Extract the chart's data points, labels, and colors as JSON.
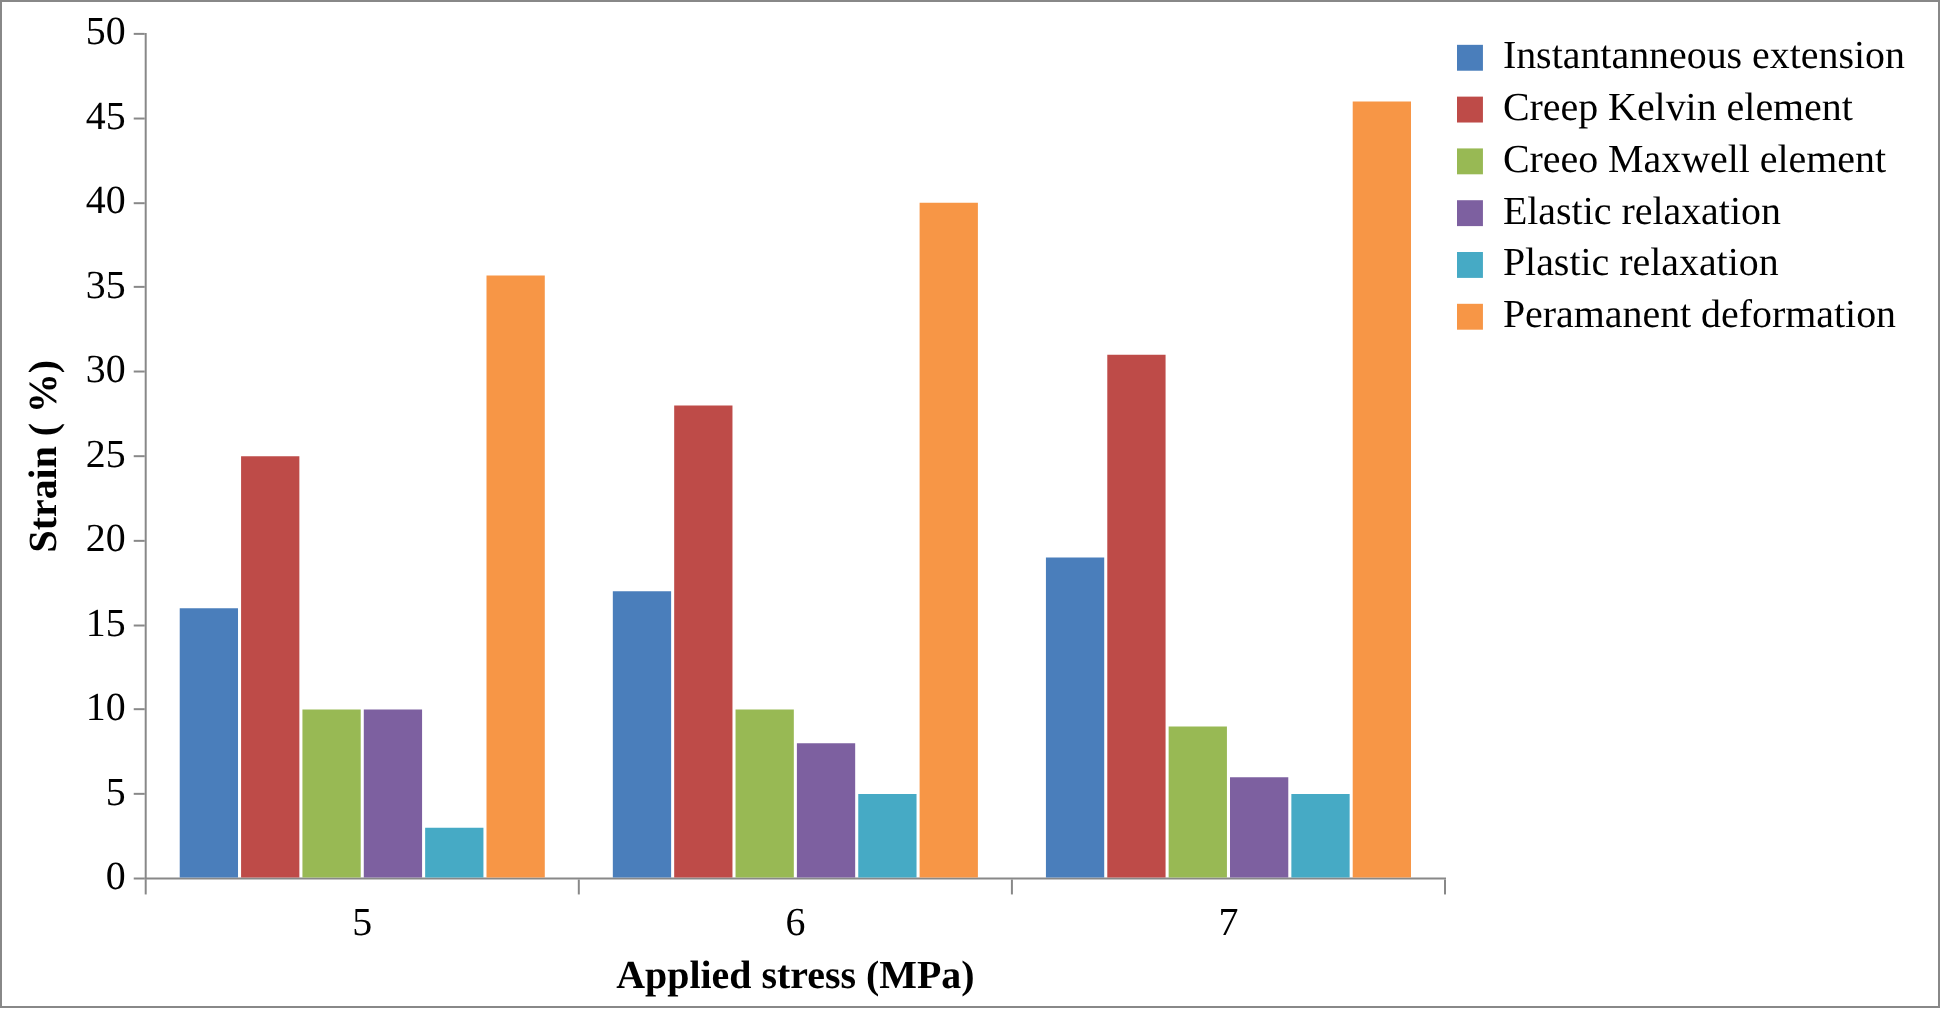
{
  "chart_data": {
    "type": "bar",
    "xlabel": "Applied stress (MPa)",
    "ylabel": "Strain ( %)",
    "categories": [
      "5",
      "6",
      "7"
    ],
    "series": [
      {
        "name": "Instantanneous extension",
        "color": "#4a7ebb",
        "values": [
          16,
          17,
          19
        ]
      },
      {
        "name": "Creep Kelvin element",
        "color": "#be4b48",
        "values": [
          25,
          28,
          31
        ]
      },
      {
        "name": "Creeo Maxwell element",
        "color": "#98b954",
        "values": [
          10,
          10,
          9
        ]
      },
      {
        "name": "Elastic relaxation",
        "color": "#7d60a0",
        "values": [
          10,
          8,
          6
        ]
      },
      {
        "name": "Plastic relaxation",
        "color": "#46aac5",
        "values": [
          3,
          5,
          5
        ]
      },
      {
        "name": "Peramanent deformation",
        "color": "#f79646",
        "values": [
          35.7,
          40,
          46
        ]
      }
    ],
    "ylim": [
      0,
      50
    ],
    "yticks": [
      0,
      5,
      10,
      15,
      20,
      25,
      30,
      35,
      40,
      45,
      50
    ],
    "grid": false,
    "legend": "right"
  }
}
